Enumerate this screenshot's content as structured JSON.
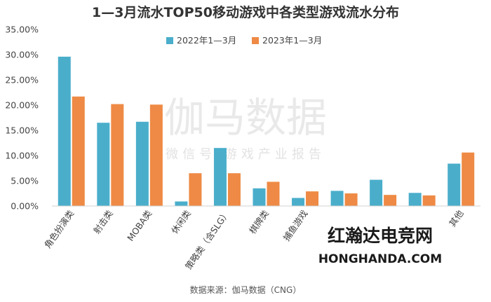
{
  "chart_data": {
    "type": "bar",
    "title": "1—3月流水TOP50移动游戏中各类型游戏流水分布",
    "categories": [
      "角色扮演类",
      "射击类",
      "MOBA类",
      "休闲类",
      "策略类（含SLG）",
      "棋牌类",
      "捕鱼游戏",
      "",
      "",
      "",
      "其他"
    ],
    "series": [
      {
        "name": "2022年1—3月",
        "color": "#4aaecb",
        "values": [
          29.6,
          16.5,
          16.7,
          0.9,
          11.5,
          3.5,
          1.6,
          3.0,
          5.2,
          2.6,
          8.4
        ]
      },
      {
        "name": "2023年1—3月",
        "color": "#ee8a45",
        "values": [
          21.7,
          20.2,
          20.1,
          6.5,
          6.5,
          4.8,
          2.9,
          2.5,
          2.2,
          2.1,
          10.6
        ]
      }
    ],
    "ylim": [
      0,
      35
    ],
    "yticks": [
      "0.00%",
      "5.00%",
      "10.00%",
      "15.00%",
      "20.00%",
      "25.00%",
      "30.00%",
      "35.00%"
    ],
    "ytick_values": [
      0,
      5,
      10,
      15,
      20,
      25,
      30,
      35
    ],
    "grid": false,
    "legend_position": "top-right"
  },
  "source": "数据来源：伽马数据（CNG）",
  "watermark": {
    "line1": "伽马数据",
    "line2": "微信号  游戏产业报告"
  },
  "overlay_brand": {
    "cn": "红瀚达电竞网",
    "en": "HONGHANDA.COM"
  }
}
